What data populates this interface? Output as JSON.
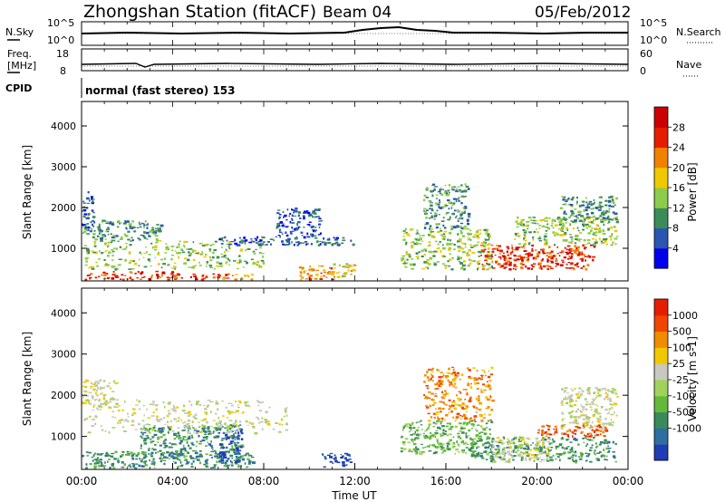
{
  "header": {
    "title": "Zhongshan Station (fitACF)",
    "beam": "Beam 04",
    "date": "05/Feb/2012"
  },
  "strip_labels": {
    "nsky": "N.Sky",
    "nsky_ticks": [
      "10^5",
      "10^0"
    ],
    "freq_line1": "Freq.",
    "freq_line2": "[MHz]",
    "freq_ticks": [
      "18",
      "8"
    ],
    "cpid": "CPID",
    "nsearch": "N.Search",
    "nsearch_ticks": [
      "10^5",
      "10^0"
    ],
    "nave": "Nave",
    "nave_ticks": [
      "60",
      "0"
    ],
    "mode_text": "normal (fast stereo) 153"
  },
  "chart_data": [
    {
      "type": "heatmap",
      "panel": "power",
      "ylabel": "Slant Range [km]",
      "yticks": [
        "1000",
        "2000",
        "3000",
        "4000"
      ],
      "ylim": [
        200,
        4600
      ],
      "xlim": [
        0,
        24
      ],
      "colorbar": {
        "label": "Power [dB]",
        "ticks": [
          "4",
          "8",
          "12",
          "16",
          "20",
          "24",
          "28"
        ],
        "colors": [
          "#0000ee",
          "#2a55b0",
          "#3c8c5a",
          "#8ccc4a",
          "#f0c800",
          "#f08200",
          "#e61e00",
          "#cc0000"
        ]
      },
      "scatter_regions": [
        {
          "t": [
            0.0,
            4.0
          ],
          "r": [
            250,
            450
          ],
          "level": 6
        },
        {
          "t": [
            4.0,
            6.0
          ],
          "r": [
            250,
            400
          ],
          "level": 6
        },
        {
          "t": [
            6.0,
            7.5
          ],
          "r": [
            250,
            400
          ],
          "level": 5
        },
        {
          "t": [
            9.5,
            11.0
          ],
          "r": [
            250,
            600
          ],
          "level": 5
        },
        {
          "t": [
            11.0,
            12.0
          ],
          "r": [
            300,
            650
          ],
          "level": 4
        },
        {
          "t": [
            0.0,
            8.0
          ],
          "r": [
            500,
            1200
          ],
          "level": 3
        },
        {
          "t": [
            0.0,
            3.5
          ],
          "r": [
            1200,
            1700
          ],
          "level": 2
        },
        {
          "t": [
            0.0,
            0.5
          ],
          "r": [
            1500,
            2400
          ],
          "level": 1
        },
        {
          "t": [
            8.5,
            10.5
          ],
          "r": [
            1300,
            2000
          ],
          "level": 1
        },
        {
          "t": [
            6.0,
            12.0
          ],
          "r": [
            1100,
            1300
          ],
          "level": 1
        },
        {
          "t": [
            14.0,
            18.0
          ],
          "r": [
            500,
            1500
          ],
          "level": 3
        },
        {
          "t": [
            15.0,
            17.0
          ],
          "r": [
            1500,
            2600
          ],
          "level": 2
        },
        {
          "t": [
            17.5,
            22.5
          ],
          "r": [
            500,
            1100
          ],
          "level": 6
        },
        {
          "t": [
            19.0,
            23.5
          ],
          "r": [
            1100,
            1800
          ],
          "level": 3
        },
        {
          "t": [
            21.0,
            23.5
          ],
          "r": [
            1700,
            2300
          ],
          "level": 2
        }
      ]
    },
    {
      "type": "heatmap",
      "panel": "velocity",
      "xlabel": "Time UT",
      "ylabel": "Slant Range [km]",
      "xticks": [
        "00:00",
        "04:00",
        "08:00",
        "12:00",
        "16:00",
        "20:00",
        "00:00"
      ],
      "yticks": [
        "1000",
        "2000",
        "3000",
        "4000"
      ],
      "ylim": [
        200,
        4600
      ],
      "xlim": [
        0,
        24
      ],
      "colorbar": {
        "label": "Velocity [m s-1]",
        "ticks": [
          "1000",
          "500",
          "100",
          "25",
          "-25",
          "-100",
          "-500",
          "-1000"
        ],
        "colors": [
          "#1e3cb4",
          "#2f6fa0",
          "#3a8a5c",
          "#64b83c",
          "#a0d25a",
          "#c8c8be",
          "#f0c800",
          "#f08c00",
          "#f04600",
          "#e61e00"
        ]
      },
      "scatter_regions": [
        {
          "t": [
            0.0,
            7.5
          ],
          "r": [
            250,
            650
          ],
          "level": 2
        },
        {
          "t": [
            2.5,
            7.0
          ],
          "r": [
            500,
            1300
          ],
          "level": 2
        },
        {
          "t": [
            6.0,
            7.0
          ],
          "r": [
            400,
            1200
          ],
          "level": 0
        },
        {
          "t": [
            10.5,
            11.8
          ],
          "r": [
            250,
            600
          ],
          "level": 0
        },
        {
          "t": [
            0.0,
            9.0
          ],
          "r": [
            1100,
            1900
          ],
          "level": 5
        },
        {
          "t": [
            0.0,
            1.5
          ],
          "r": [
            1700,
            2400
          ],
          "level": 5
        },
        {
          "t": [
            15.0,
            18.0
          ],
          "r": [
            1400,
            2700
          ],
          "level": 7
        },
        {
          "t": [
            14.0,
            18.0
          ],
          "r": [
            600,
            1400
          ],
          "level": 3
        },
        {
          "t": [
            17.0,
            23.5
          ],
          "r": [
            400,
            1000
          ],
          "level": 2
        },
        {
          "t": [
            18.0,
            20.5
          ],
          "r": [
            400,
            1000
          ],
          "level": 5
        },
        {
          "t": [
            21.0,
            23.5
          ],
          "r": [
            1200,
            2200
          ],
          "level": 5
        },
        {
          "t": [
            20.0,
            23.0
          ],
          "r": [
            1000,
            1300
          ],
          "level": 8
        }
      ]
    }
  ]
}
